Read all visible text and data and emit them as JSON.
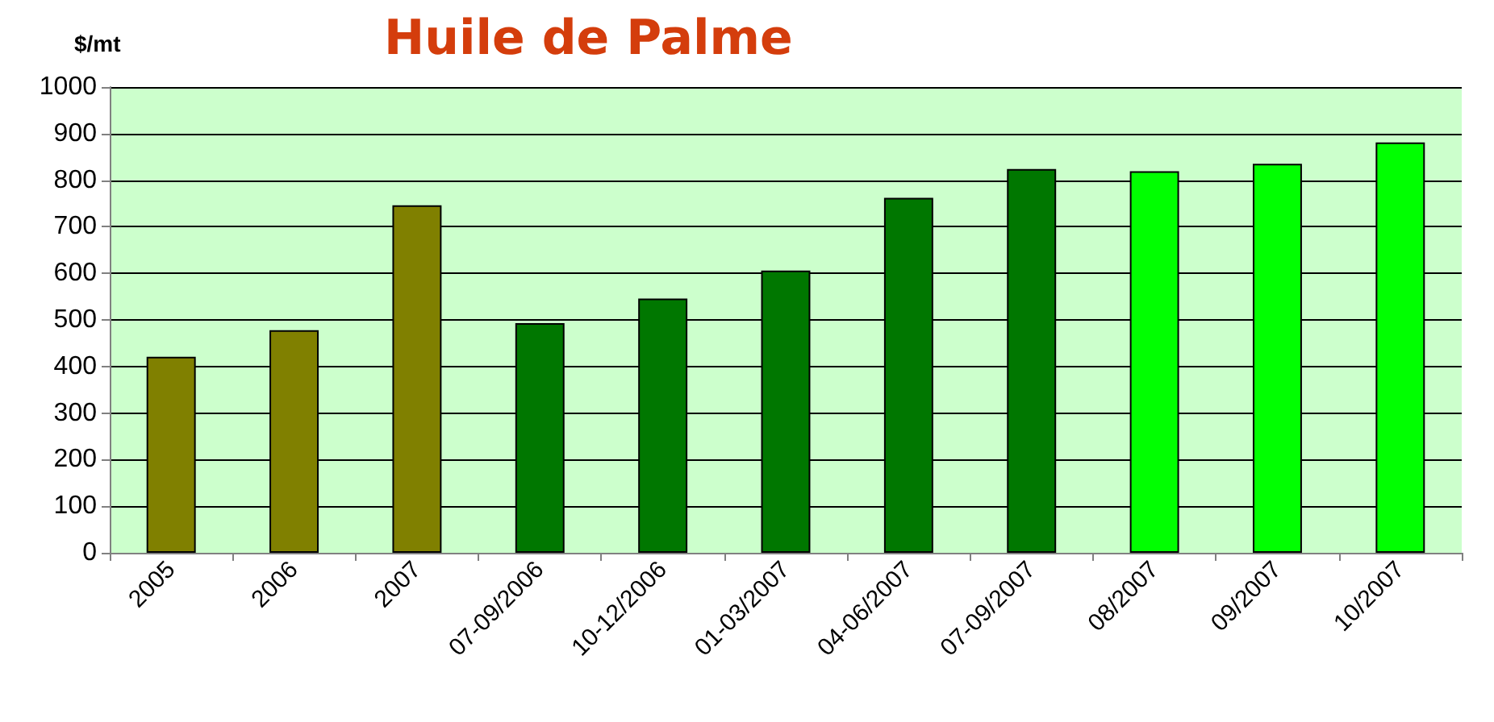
{
  "chart_data": {
    "type": "bar",
    "title": "Huile de Palme",
    "ylabel": "$/mt",
    "categories": [
      "2005",
      "2006",
      "2007",
      "07-09/2006",
      "10-12/2006",
      "01-03/2007",
      "04-06/2007",
      "07-09/2007",
      "08/2007",
      "09/2007",
      "10/2007"
    ],
    "values": [
      421,
      478,
      746,
      493,
      546,
      606,
      762,
      824,
      819,
      835,
      881
    ],
    "colors": [
      "#808000",
      "#808000",
      "#808000",
      "#007700",
      "#007700",
      "#007700",
      "#007700",
      "#007700",
      "#00ff00",
      "#00ff00",
      "#00ff00"
    ],
    "ylim": [
      0,
      1000
    ],
    "yticks": [
      0,
      100,
      200,
      300,
      400,
      500,
      600,
      700,
      800,
      900,
      1000
    ],
    "grid": "y"
  }
}
